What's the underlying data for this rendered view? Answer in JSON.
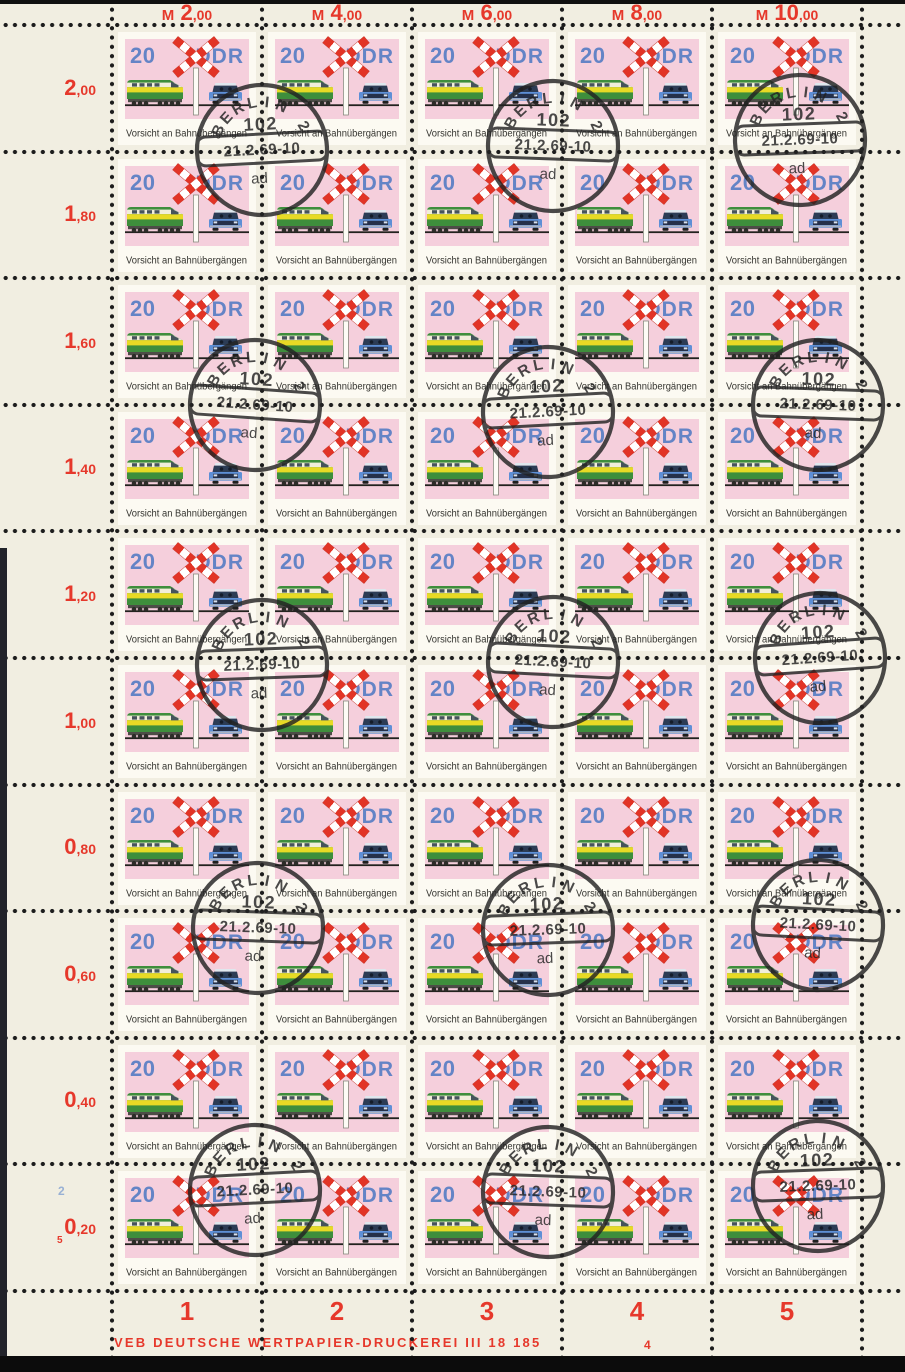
{
  "sheet": {
    "stamp": {
      "denomination": "20",
      "country": "DDR",
      "caption": "Vorsicht an Bahnübergängen",
      "rows": 10,
      "cols": 5,
      "total_stamps": 50
    },
    "top_margin_totals": [
      "M 2,00",
      "M 4,00",
      "M 6,00",
      "M 8,00",
      "M 10,00"
    ],
    "left_margin_totals": [
      "2,00",
      "1,80",
      "1,60",
      "1,40",
      "1,20",
      "1,00",
      "0,80",
      "0,60",
      "0,40",
      "0,20"
    ],
    "bottom_column_numbers": [
      "1",
      "2",
      "3",
      "4",
      "5"
    ],
    "printer_imprint": "VEB DEUTSCHE WERTPAPIER-DRUCKEREI III 18 185",
    "plate_number": "4",
    "margin_marks": {
      "blue_pencil": "2",
      "red_small": "5"
    }
  },
  "postmark": {
    "city": "BERLIN 2",
    "code": "102",
    "date": "21.2.69-10",
    "letters": "ad"
  },
  "colors": {
    "margin_red": "#e6382b",
    "stamp_pink": "#f5cfdc",
    "stamp_blue": "#6484c6",
    "cross_red": "#e23426",
    "loco_green": "#3e8e3c",
    "loco_yellow": "#e8da25",
    "car_blue": "#5e8fd6",
    "paper_cream": "#f1eee1",
    "ink_black": "#232323"
  }
}
